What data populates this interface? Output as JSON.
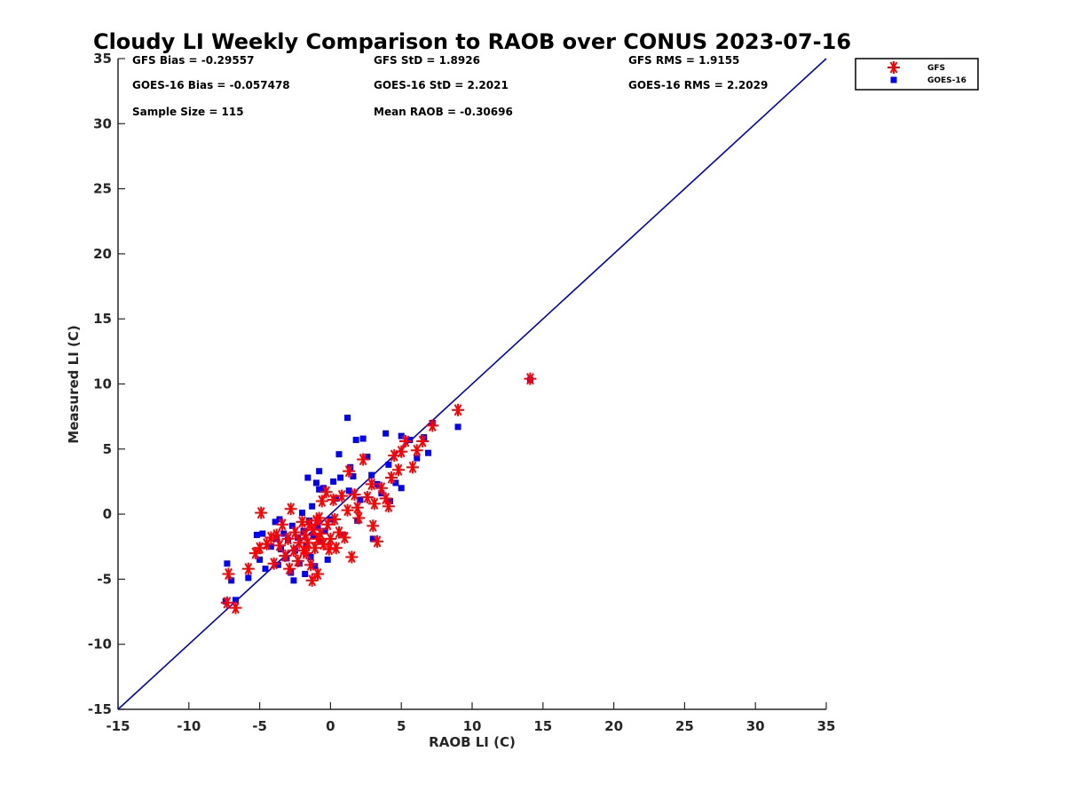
{
  "chart_data": {
    "type": "scatter",
    "title": "Cloudy LI Weekly Comparison to RAOB over CONUS 2023-07-16",
    "xlabel": "RAOB LI (C)",
    "ylabel": "Measured LI (C)",
    "xlim": [
      -15,
      35
    ],
    "ylim": [
      -15,
      35
    ],
    "x_ticks": [
      -15,
      -10,
      -5,
      0,
      5,
      10,
      15,
      20,
      25,
      30,
      35
    ],
    "y_ticks": [
      -15,
      -10,
      -5,
      0,
      5,
      10,
      15,
      20,
      25,
      30,
      35
    ],
    "x_tick_labels": [
      "-15",
      "-10",
      "-5",
      "0",
      "5",
      "10",
      "15",
      "20",
      "25",
      "30",
      "35"
    ],
    "y_tick_labels": [
      "-15",
      "-10",
      "-5",
      "0",
      "5",
      "10",
      "15",
      "20",
      "25",
      "30",
      "35"
    ],
    "grid": false,
    "legend_position": "top-right outside",
    "reference_line": {
      "type": "one-to-one",
      "from": [
        -15,
        -15
      ],
      "to": [
        35,
        35
      ],
      "color": "#0000cc"
    },
    "stats": {
      "gfs_bias": "GFS Bias = -0.29557",
      "gfs_std": "GFS StD = 1.8926",
      "gfs_rms": "GFS RMS = 1.9155",
      "goes_bias": "GOES-16 Bias = -0.057478",
      "goes_std": "GOES-16 StD = 2.2021",
      "goes_rms": "GOES-16 RMS = 2.2029",
      "sample_size": "Sample Size = 115",
      "mean_raob": "Mean RAOB = -0.30696"
    },
    "series": [
      {
        "name": "GFS",
        "marker": "asterisk",
        "color": "#ff0000",
        "points": [
          [
            -7.3,
            -6.8
          ],
          [
            -7.2,
            -4.6
          ],
          [
            -6.7,
            -7.2
          ],
          [
            -5.8,
            -4.2
          ],
          [
            -5.3,
            -3.0
          ],
          [
            -5.0,
            -2.6
          ],
          [
            -4.9,
            0.1
          ],
          [
            -4.5,
            -2.3
          ],
          [
            -4.2,
            -1.8
          ],
          [
            -4.0,
            -3.8
          ],
          [
            -3.8,
            -1.6
          ],
          [
            -3.6,
            -2.4
          ],
          [
            -3.4,
            -0.8
          ],
          [
            -3.2,
            -3.2
          ],
          [
            -3.0,
            -1.9
          ],
          [
            -2.9,
            -4.2
          ],
          [
            -2.8,
            0.4
          ],
          [
            -2.6,
            -2.8
          ],
          [
            -2.5,
            -1.4
          ],
          [
            -2.3,
            -3.6
          ],
          [
            -2.2,
            -2.2
          ],
          [
            -2.0,
            -0.6
          ],
          [
            -1.9,
            -2.8
          ],
          [
            -1.8,
            -1.6
          ],
          [
            -1.7,
            -3.0
          ],
          [
            -1.6,
            -2.2
          ],
          [
            -1.5,
            -0.8
          ],
          [
            -1.4,
            -3.9
          ],
          [
            -1.3,
            -5.1
          ],
          [
            -1.2,
            -1.2
          ],
          [
            -1.1,
            -2.6
          ],
          [
            -1.0,
            -0.5
          ],
          [
            -0.9,
            -1.9
          ],
          [
            -0.9,
            -4.6
          ],
          [
            -0.8,
            -0.3
          ],
          [
            -0.7,
            -1.5
          ],
          [
            -0.6,
            1.0
          ],
          [
            -0.5,
            -2.3
          ],
          [
            -0.3,
            1.7
          ],
          [
            -0.2,
            -0.8
          ],
          [
            -0.1,
            -2.7
          ],
          [
            0.0,
            -1.9
          ],
          [
            0.2,
            1.1
          ],
          [
            0.3,
            -0.4
          ],
          [
            0.4,
            -2.6
          ],
          [
            0.6,
            -1.4
          ],
          [
            0.8,
            1.4
          ],
          [
            1.0,
            -1.8
          ],
          [
            1.2,
            0.3
          ],
          [
            1.3,
            3.3
          ],
          [
            1.5,
            -3.3
          ],
          [
            1.7,
            1.5
          ],
          [
            1.9,
            0.5
          ],
          [
            2.0,
            -0.3
          ],
          [
            2.3,
            4.2
          ],
          [
            2.6,
            1.3
          ],
          [
            2.9,
            2.3
          ],
          [
            3.0,
            -0.9
          ],
          [
            3.1,
            0.8
          ],
          [
            3.3,
            -2.1
          ],
          [
            3.6,
            2.0
          ],
          [
            3.9,
            1.2
          ],
          [
            4.1,
            0.6
          ],
          [
            4.3,
            2.8
          ],
          [
            4.5,
            4.5
          ],
          [
            4.8,
            3.4
          ],
          [
            5.0,
            4.8
          ],
          [
            5.3,
            5.6
          ],
          [
            5.8,
            3.6
          ],
          [
            6.1,
            4.9
          ],
          [
            6.5,
            5.6
          ],
          [
            7.2,
            6.8
          ],
          [
            9.0,
            8.0
          ],
          [
            14.1,
            10.4
          ]
        ]
      },
      {
        "name": "GOES-16",
        "marker": "square",
        "color": "#0000ff",
        "points": [
          [
            -7.4,
            -6.7
          ],
          [
            -7.3,
            -3.8
          ],
          [
            -7.0,
            -5.1
          ],
          [
            -6.7,
            -6.6
          ],
          [
            -5.8,
            -4.9
          ],
          [
            -5.2,
            -1.6
          ],
          [
            -5.0,
            -3.5
          ],
          [
            -4.8,
            -1.5
          ],
          [
            -4.6,
            -4.2
          ],
          [
            -4.2,
            -2.5
          ],
          [
            -3.9,
            -0.6
          ],
          [
            -3.8,
            -1.9
          ],
          [
            -3.7,
            -3.9
          ],
          [
            -3.6,
            -0.4
          ],
          [
            -3.5,
            -2.7
          ],
          [
            -3.3,
            -1.5
          ],
          [
            -3.1,
            -3.4
          ],
          [
            -3.0,
            -2.0
          ],
          [
            -2.8,
            -4.5
          ],
          [
            -2.7,
            -0.9
          ],
          [
            -2.6,
            -5.1
          ],
          [
            -2.5,
            -2.8
          ],
          [
            -2.3,
            -1.8
          ],
          [
            -2.2,
            -3.8
          ],
          [
            -2.0,
            0.1
          ],
          [
            -1.9,
            -1.3
          ],
          [
            -1.8,
            -4.6
          ],
          [
            -1.7,
            -2.4
          ],
          [
            -1.6,
            2.8
          ],
          [
            -1.5,
            -0.5
          ],
          [
            -1.4,
            -3.3
          ],
          [
            -1.3,
            0.6
          ],
          [
            -1.2,
            -1.7
          ],
          [
            -1.1,
            -4.0
          ],
          [
            -1.0,
            2.4
          ],
          [
            -0.9,
            -0.9
          ],
          [
            -0.8,
            1.9
          ],
          [
            -0.8,
            3.3
          ],
          [
            -0.7,
            -2.1
          ],
          [
            -0.5,
            2.0
          ],
          [
            -0.4,
            -1.3
          ],
          [
            -0.2,
            -3.5
          ],
          [
            0.0,
            -0.4
          ],
          [
            0.2,
            2.5
          ],
          [
            0.4,
            1.2
          ],
          [
            0.6,
            4.6
          ],
          [
            0.7,
            2.8
          ],
          [
            0.9,
            -1.6
          ],
          [
            1.2,
            7.4
          ],
          [
            1.3,
            1.8
          ],
          [
            1.4,
            3.6
          ],
          [
            1.6,
            2.9
          ],
          [
            1.8,
            5.7
          ],
          [
            1.9,
            -0.5
          ],
          [
            2.1,
            1.1
          ],
          [
            2.3,
            5.8
          ],
          [
            2.6,
            4.4
          ],
          [
            2.9,
            3.0
          ],
          [
            3.0,
            -1.9
          ],
          [
            3.3,
            2.3
          ],
          [
            3.6,
            1.6
          ],
          [
            3.9,
            6.2
          ],
          [
            4.1,
            3.8
          ],
          [
            4.2,
            1.0
          ],
          [
            4.6,
            2.4
          ],
          [
            5.0,
            2.0
          ],
          [
            5.0,
            6.0
          ],
          [
            5.6,
            5.7
          ],
          [
            6.1,
            4.3
          ],
          [
            6.6,
            5.9
          ],
          [
            6.9,
            4.7
          ],
          [
            7.2,
            7.0
          ],
          [
            9.0,
            6.7
          ],
          [
            14.1,
            10.3
          ]
        ]
      }
    ]
  }
}
